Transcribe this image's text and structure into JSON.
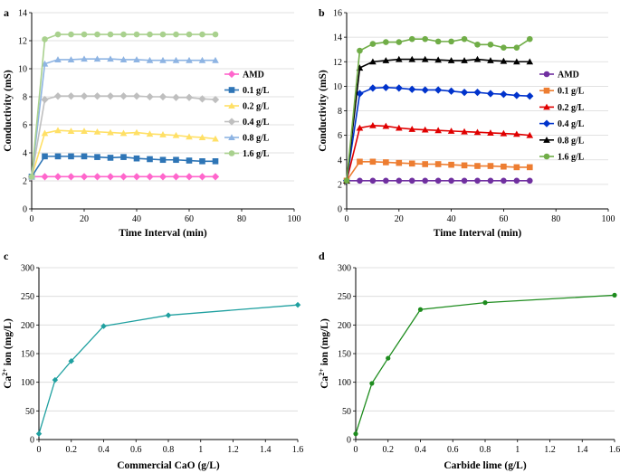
{
  "chart_data": [
    {
      "panel": "a",
      "type": "line",
      "xlabel": "Time Interval (min)",
      "ylabel": "Conductivity (mS)",
      "xlim": [
        0,
        100
      ],
      "ylim": [
        0,
        14
      ],
      "xticks": [
        0,
        20,
        40,
        60,
        80,
        100
      ],
      "yticks": [
        0,
        2,
        4,
        6,
        8,
        10,
        12,
        14
      ],
      "legend_position": "right",
      "x": [
        0,
        5,
        10,
        15,
        20,
        25,
        30,
        35,
        40,
        45,
        50,
        55,
        60,
        65,
        70
      ],
      "series": [
        {
          "name": "AMD",
          "color": "#ff66cc",
          "marker": "diamond",
          "values": [
            2.3,
            2.3,
            2.3,
            2.3,
            2.3,
            2.3,
            2.3,
            2.3,
            2.3,
            2.3,
            2.3,
            2.3,
            2.3,
            2.3,
            2.3
          ]
        },
        {
          "name": "0.1 g/L",
          "color": "#2e75b6",
          "marker": "square",
          "values": [
            2.3,
            3.75,
            3.75,
            3.75,
            3.75,
            3.7,
            3.65,
            3.7,
            3.6,
            3.55,
            3.5,
            3.5,
            3.45,
            3.4,
            3.4
          ]
        },
        {
          "name": "0.2 g/L",
          "color": "#ffe066",
          "marker": "triangle",
          "values": [
            2.3,
            5.4,
            5.6,
            5.55,
            5.55,
            5.5,
            5.45,
            5.4,
            5.45,
            5.35,
            5.3,
            5.25,
            5.15,
            5.1,
            5.0
          ]
        },
        {
          "name": "0.4 g/L",
          "color": "#bfbfbf",
          "marker": "diamond",
          "values": [
            2.3,
            7.8,
            8.05,
            8.05,
            8.05,
            8.05,
            8.05,
            8.05,
            8.05,
            8.0,
            8.0,
            7.95,
            7.95,
            7.85,
            7.8
          ]
        },
        {
          "name": "0.8 g/L",
          "color": "#8eb4e3",
          "marker": "triangle",
          "values": [
            2.3,
            10.35,
            10.65,
            10.65,
            10.7,
            10.7,
            10.7,
            10.65,
            10.65,
            10.6,
            10.6,
            10.6,
            10.6,
            10.6,
            10.6
          ]
        },
        {
          "name": "1.6 g/L",
          "color": "#a9d18e",
          "marker": "circle",
          "values": [
            2.3,
            12.1,
            12.45,
            12.45,
            12.45,
            12.45,
            12.45,
            12.45,
            12.45,
            12.45,
            12.45,
            12.45,
            12.45,
            12.45,
            12.45
          ]
        }
      ]
    },
    {
      "panel": "b",
      "type": "line",
      "xlabel": "Time Interval (min)",
      "ylabel": "Conductivity (mS)",
      "xlim": [
        0,
        100
      ],
      "ylim": [
        0,
        16
      ],
      "xticks": [
        0,
        20,
        40,
        60,
        80,
        100
      ],
      "yticks": [
        0,
        2,
        4,
        6,
        8,
        10,
        12,
        14,
        16
      ],
      "legend_position": "right",
      "x": [
        0,
        5,
        10,
        15,
        20,
        25,
        30,
        35,
        40,
        45,
        50,
        55,
        60,
        65,
        70
      ],
      "series": [
        {
          "name": "AMD",
          "color": "#7030a0",
          "marker": "circle",
          "values": [
            2.3,
            2.3,
            2.3,
            2.3,
            2.3,
            2.3,
            2.3,
            2.3,
            2.3,
            2.3,
            2.3,
            2.3,
            2.3,
            2.3,
            2.3
          ]
        },
        {
          "name": "0.1 g/L",
          "color": "#ed7d31",
          "marker": "square",
          "values": [
            2.3,
            3.85,
            3.85,
            3.8,
            3.75,
            3.7,
            3.65,
            3.65,
            3.6,
            3.55,
            3.5,
            3.5,
            3.45,
            3.4,
            3.4
          ]
        },
        {
          "name": "0.2 g/L",
          "color": "#e00000",
          "marker": "triangle",
          "values": [
            2.3,
            6.6,
            6.8,
            6.75,
            6.6,
            6.5,
            6.45,
            6.4,
            6.35,
            6.3,
            6.25,
            6.2,
            6.15,
            6.1,
            6.0
          ]
        },
        {
          "name": "0.4 g/L",
          "color": "#0033cc",
          "marker": "diamond",
          "values": [
            2.3,
            9.4,
            9.85,
            9.9,
            9.85,
            9.75,
            9.7,
            9.7,
            9.6,
            9.5,
            9.5,
            9.4,
            9.35,
            9.25,
            9.2
          ]
        },
        {
          "name": "0.8 g/L",
          "color": "#000000",
          "marker": "triangle",
          "values": [
            2.3,
            11.5,
            12.0,
            12.1,
            12.2,
            12.2,
            12.2,
            12.15,
            12.1,
            12.1,
            12.2,
            12.1,
            12.05,
            12.0,
            12.0
          ]
        },
        {
          "name": "1.6 g/L",
          "color": "#70ad47",
          "marker": "circle",
          "values": [
            2.3,
            12.9,
            13.45,
            13.6,
            13.6,
            13.85,
            13.85,
            13.65,
            13.65,
            13.85,
            13.4,
            13.4,
            13.15,
            13.15,
            13.85
          ]
        }
      ]
    },
    {
      "panel": "c",
      "type": "line",
      "xlabel": "Commercial CaO (g/L)",
      "ylabel_prefix": "Ca",
      "ylabel_sup": "2+",
      "ylabel_suffix": " ion (mg/L)",
      "xlim": [
        0,
        1.6
      ],
      "ylim": [
        0,
        300
      ],
      "xticks": [
        0,
        0.2,
        0.4,
        0.6,
        0.8,
        1,
        1.2,
        1.4,
        1.6
      ],
      "yticks": [
        0,
        50,
        100,
        150,
        200,
        250,
        300
      ],
      "series": [
        {
          "name": "Commercial CaO",
          "color": "#1fa0a0",
          "marker": "diamond",
          "x": [
            0,
            0.1,
            0.2,
            0.4,
            0.8,
            1.6
          ],
          "values": [
            10,
            104,
            137,
            198,
            217,
            235
          ]
        }
      ]
    },
    {
      "panel": "d",
      "type": "line",
      "xlabel": "Carbide lime (g/L)",
      "ylabel_prefix": "Ca",
      "ylabel_sup": "2+",
      "ylabel_suffix": " ion (mg/L)",
      "xlim": [
        0,
        1.6
      ],
      "ylim": [
        0,
        300
      ],
      "xticks": [
        0,
        0.2,
        0.4,
        0.6,
        0.8,
        1,
        1.2,
        1.4,
        1.6
      ],
      "yticks": [
        0,
        50,
        100,
        150,
        200,
        250,
        300
      ],
      "series": [
        {
          "name": "Carbide lime",
          "color": "#1e8c1e",
          "marker": "circle",
          "x": [
            0,
            0.1,
            0.2,
            0.4,
            0.8,
            1.6
          ],
          "values": [
            10,
            98,
            142,
            227,
            239,
            252
          ]
        }
      ]
    }
  ]
}
